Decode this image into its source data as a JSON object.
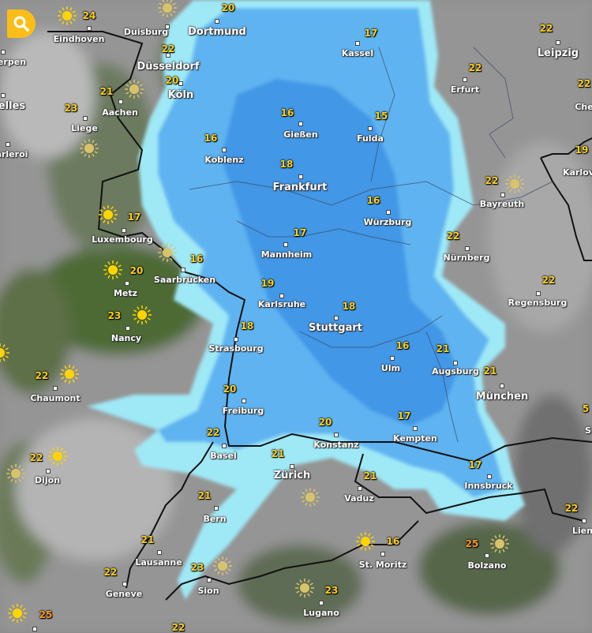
{
  "search_button": {
    "icon": "search-icon",
    "color": "#fbbd18"
  },
  "colors": {
    "temp": "#ffd21a",
    "temp_hot": "#ff9a1e",
    "rain_light": "#9fe9f7",
    "rain_medium": "#5eb3f0",
    "rain_heavy": "#3a8ee3"
  },
  "places": [
    {
      "name": "Eindhoven",
      "temp": "24"
    },
    {
      "name": "Duisburg",
      "temp": ""
    },
    {
      "name": "Dortmund",
      "temp": "20"
    },
    {
      "name": "Düsseldorf",
      "temp": "22"
    },
    {
      "name": "Köln",
      "temp": "20"
    },
    {
      "name": "Aachen",
      "temp": "21"
    },
    {
      "name": "Liege",
      "temp": "23"
    },
    {
      "name": "erpen",
      "temp": ""
    },
    {
      "name": "elles",
      "temp": ""
    },
    {
      "name": "arleroi",
      "temp": ""
    },
    {
      "name": "Kassel",
      "temp": "17"
    },
    {
      "name": "Leipzig",
      "temp": "22"
    },
    {
      "name": "Erfurt",
      "temp": "22"
    },
    {
      "name": "Che",
      "temp": "22"
    },
    {
      "name": "Gießen",
      "temp": "16"
    },
    {
      "name": "Fulda",
      "temp": "15"
    },
    {
      "name": "Koblenz",
      "temp": "16"
    },
    {
      "name": "Frankfurt",
      "temp": "18"
    },
    {
      "name": "Karlov",
      "temp": "19"
    },
    {
      "name": "Bayreuth",
      "temp": "22"
    },
    {
      "name": "Würzburg",
      "temp": "16"
    },
    {
      "name": "Luxembourg",
      "temp": "17"
    },
    {
      "name": "Nürnberg",
      "temp": "22"
    },
    {
      "name": "Mannheim",
      "temp": "17"
    },
    {
      "name": "Saarbrücken",
      "temp": "16"
    },
    {
      "name": "Metz",
      "temp": "20"
    },
    {
      "name": "Karlsruhe",
      "temp": "19"
    },
    {
      "name": "Regensburg",
      "temp": "22"
    },
    {
      "name": "Stuttgart",
      "temp": "18"
    },
    {
      "name": "Nancy",
      "temp": "23"
    },
    {
      "name": "Strasbourg",
      "temp": "18"
    },
    {
      "name": "Ulm",
      "temp": "16"
    },
    {
      "name": "Augsburg",
      "temp": "21"
    },
    {
      "name": "München",
      "temp": "21"
    },
    {
      "name": "Chaumont",
      "temp": "22"
    },
    {
      "name": "Freiburg",
      "temp": "20"
    },
    {
      "name": "Kempten",
      "temp": "17"
    },
    {
      "name": "Konstanz",
      "temp": "20"
    },
    {
      "name": "Basel",
      "temp": "22"
    },
    {
      "name": "Zürich",
      "temp": "21"
    },
    {
      "name": "Dijon",
      "temp": "22"
    },
    {
      "name": "Innsbruck",
      "temp": "17"
    },
    {
      "name": "Vaduz",
      "temp": "21"
    },
    {
      "name": "Bern",
      "temp": "21"
    },
    {
      "name": "Lien",
      "temp": "22"
    },
    {
      "name": "Lausanne",
      "temp": "21"
    },
    {
      "name": "St. Moritz",
      "temp": "16"
    },
    {
      "name": "Bolzano",
      "temp": "25"
    },
    {
      "name": "Geneve",
      "temp": "22"
    },
    {
      "name": "Sion",
      "temp": "23"
    },
    {
      "name": "Lugano",
      "temp": "23"
    },
    {
      "name": "S",
      "temp": "5"
    },
    {
      "name": "",
      "temp": "25"
    },
    {
      "name": "",
      "temp": "22"
    }
  ],
  "weather_icons": "sun-icon"
}
